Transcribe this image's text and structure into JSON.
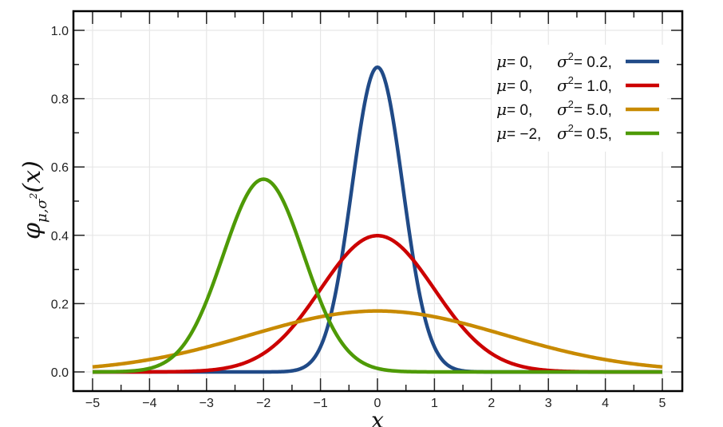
{
  "chart_data": {
    "type": "line",
    "title": "",
    "xlabel": "x",
    "ylabel": "φ_{μ,σ²}(x)",
    "ylabel_parts": {
      "main": "φ",
      "sub": "μ,σ",
      "sup": "2",
      "arg": "(x)"
    },
    "xlim": [
      -5,
      5
    ],
    "ylim": [
      0,
      1.0
    ],
    "xticks": [
      -5,
      -4,
      -3,
      -2,
      -1,
      0,
      1,
      2,
      3,
      4,
      5
    ],
    "xtick_labels": [
      "−5",
      "−4",
      "−3",
      "−2",
      "−1",
      "0",
      "1",
      "2",
      "3",
      "4",
      "5"
    ],
    "yticks": [
      0.0,
      0.2,
      0.4,
      0.6,
      0.8,
      1.0
    ],
    "ytick_labels": [
      "0.0",
      "0.2",
      "0.4",
      "0.6",
      "0.8",
      "1.0"
    ],
    "grid": true,
    "legend_position": "upper right",
    "series": [
      {
        "name": "μ=0, σ²=0.2",
        "mu": 0,
        "sigma2": 0.2,
        "color": "#204a87",
        "peak": 0.892,
        "mu_label": "μ = 0,",
        "sigma_label": "σ",
        "sigma_value": "= 0.2,"
      },
      {
        "name": "μ=0, σ²=1.0",
        "mu": 0,
        "sigma2": 1.0,
        "color": "#cc0000",
        "peak": 0.399,
        "mu_label": "μ = 0,",
        "sigma_label": "σ",
        "sigma_value": "= 1.0,"
      },
      {
        "name": "μ=0, σ²=5.0",
        "mu": 0,
        "sigma2": 5.0,
        "color": "#c88a00",
        "peak": 0.178,
        "mu_label": "μ = 0,",
        "sigma_label": "σ",
        "sigma_value": "= 5.0,"
      },
      {
        "name": "μ=−2, σ²=0.5",
        "mu": -2,
        "sigma2": 0.5,
        "color": "#4e9a06",
        "peak": 0.564,
        "mu_label": "μ = −2,",
        "sigma_label": "σ",
        "sigma_value": "= 0.5,"
      }
    ]
  }
}
